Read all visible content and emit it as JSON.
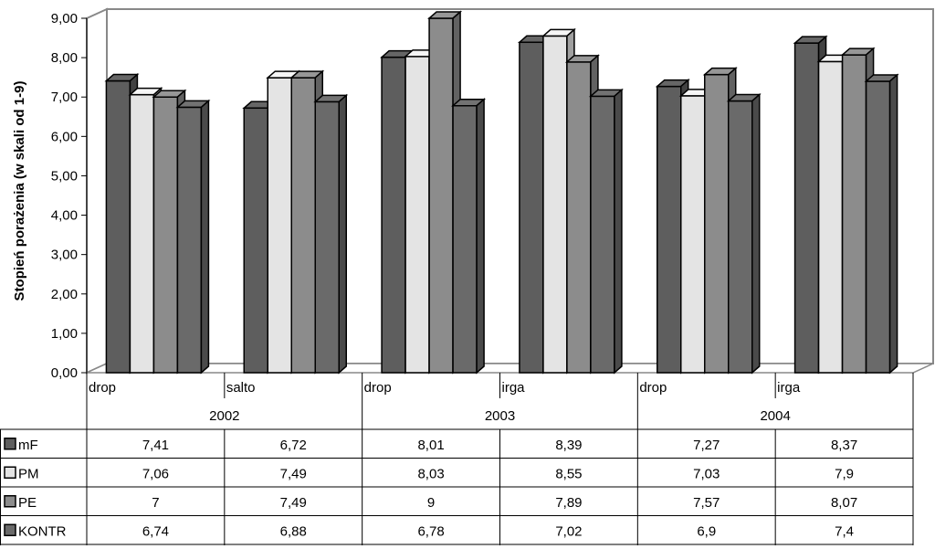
{
  "chart_data": {
    "type": "bar",
    "ylabel": "Stopień porażenia (w skali od 1-9)",
    "ylim": [
      0,
      9
    ],
    "yticks": [
      "0,00",
      "1,00",
      "2,00",
      "3,00",
      "4,00",
      "5,00",
      "6,00",
      "7,00",
      "8,00",
      "9,00"
    ],
    "grid": false,
    "categories": [
      "drop",
      "salto",
      "drop",
      "irga",
      "drop",
      "irga"
    ],
    "groups": [
      "2002",
      "2003",
      "2004"
    ],
    "series": [
      {
        "name": "mF",
        "color": "#5e5e5e",
        "values": [
          7.41,
          6.72,
          8.01,
          8.39,
          7.27,
          8.37
        ],
        "labels": [
          "7,41",
          "6,72",
          "8,01",
          "8,39",
          "7,27",
          "8,37"
        ]
      },
      {
        "name": "PM",
        "color": "#e4e4e4",
        "values": [
          7.06,
          7.49,
          8.03,
          8.55,
          7.03,
          7.9
        ],
        "labels": [
          "7,06",
          "7,49",
          "8,03",
          "8,55",
          "7,03",
          "7,9"
        ]
      },
      {
        "name": "PE",
        "color": "#8c8c8c",
        "values": [
          7,
          7.49,
          9,
          7.89,
          7.57,
          8.07
        ],
        "labels": [
          "7",
          "7,49",
          "9",
          "7,89",
          "7,57",
          "8,07"
        ]
      },
      {
        "name": "KONTR",
        "color": "#6a6a6a",
        "values": [
          6.74,
          6.88,
          6.78,
          7.02,
          6.9,
          7.4
        ],
        "labels": [
          "6,74",
          "6,88",
          "6,78",
          "7,02",
          "6,9",
          "7,4"
        ]
      }
    ],
    "legend": "data-table"
  }
}
